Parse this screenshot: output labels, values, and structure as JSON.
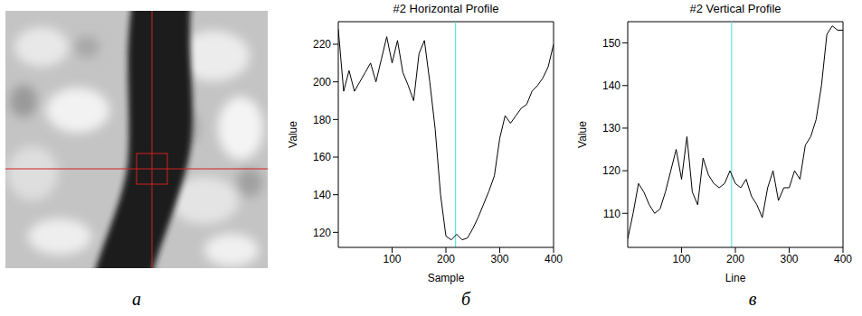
{
  "panel_labels": [
    "а",
    "б",
    "в"
  ],
  "chart_data": [
    {
      "type": "line",
      "title": "#2 Horizontal Profile",
      "x_label": "Sample",
      "y_label": "Value",
      "x": [
        0,
        10,
        20,
        30,
        40,
        50,
        60,
        70,
        80,
        90,
        100,
        110,
        120,
        130,
        140,
        150,
        160,
        170,
        180,
        190,
        200,
        210,
        220,
        230,
        240,
        250,
        260,
        270,
        280,
        290,
        300,
        310,
        320,
        330,
        340,
        350,
        360,
        370,
        380,
        390,
        400
      ],
      "values": [
        228,
        195,
        206,
        195,
        200,
        205,
        210,
        200,
        212,
        224,
        210,
        222,
        205,
        198,
        190,
        215,
        222,
        200,
        175,
        140,
        118,
        116,
        119,
        116,
        117,
        122,
        128,
        135,
        142,
        150,
        170,
        182,
        178,
        182,
        186,
        188,
        195,
        198,
        202,
        208,
        220
      ],
      "color": "#000000",
      "xlim": [
        0,
        400
      ],
      "xticks": [
        100,
        200,
        300,
        400
      ],
      "ylim": [
        112,
        232
      ],
      "yticks": [
        120,
        140,
        160,
        180,
        200,
        220
      ],
      "vline": {
        "x": 218,
        "color": "#40e0e0"
      }
    },
    {
      "type": "line",
      "title": "#2 Vertical Profile",
      "x_label": "Line",
      "y_label": "Value",
      "x": [
        0,
        10,
        20,
        30,
        40,
        50,
        60,
        70,
        80,
        90,
        100,
        110,
        120,
        130,
        140,
        150,
        160,
        170,
        180,
        190,
        200,
        210,
        220,
        230,
        240,
        250,
        260,
        270,
        280,
        290,
        300,
        310,
        320,
        330,
        340,
        350,
        360,
        370,
        380,
        390,
        400
      ],
      "values": [
        104,
        110,
        117,
        115,
        112,
        110,
        111,
        115,
        120,
        125,
        118,
        128,
        115,
        112,
        123,
        119,
        117,
        116,
        117,
        120,
        117,
        116,
        118,
        114,
        112,
        109,
        116,
        120,
        113,
        116,
        116,
        120,
        118,
        126,
        128,
        132,
        140,
        152,
        154,
        153,
        153
      ],
      "color": "#000000",
      "xlim": [
        0,
        400
      ],
      "xticks": [
        100,
        200,
        300,
        400
      ],
      "ylim": [
        102,
        155
      ],
      "yticks": [
        110,
        120,
        130,
        140,
        150
      ],
      "vline": {
        "x": 193,
        "color": "#40e0e0"
      }
    }
  ]
}
